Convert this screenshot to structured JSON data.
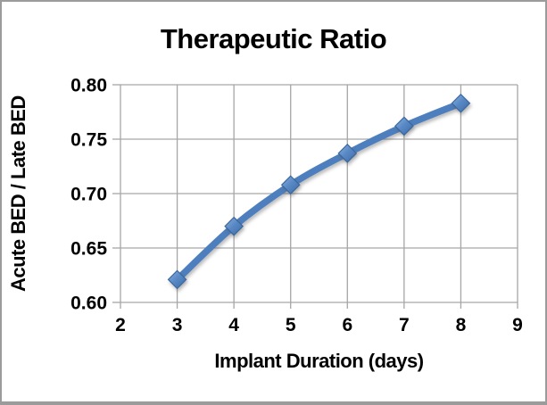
{
  "window": {
    "background": "#ffffff",
    "border_color": "#9b9b9b"
  },
  "chart_data": {
    "type": "line",
    "title": "Therapeutic Ratio",
    "xlabel": "Implant Duration (days)",
    "ylabel": "Acute BED / Late BED",
    "x": [
      3,
      4,
      5,
      6,
      7,
      8
    ],
    "y": [
      0.621,
      0.67,
      0.708,
      0.737,
      0.762,
      0.783
    ],
    "xlim": [
      2,
      9
    ],
    "ylim": [
      0.6,
      0.8
    ],
    "x_ticks": [
      2,
      3,
      4,
      5,
      6,
      7,
      8,
      9
    ],
    "y_ticks": [
      0.6,
      0.65,
      0.7,
      0.75,
      0.8
    ],
    "grid": true,
    "legend": "none",
    "line_color": "#4d7ebd",
    "marker": "diamond",
    "marker_fill_light": "#8fb2e0",
    "marker_fill_mid": "#5a8ac6",
    "marker_fill_dark": "#3d6ca6",
    "marker_stroke": "#3a679e",
    "gridline_color": "#a6a6a6",
    "text_color": "#000000"
  }
}
